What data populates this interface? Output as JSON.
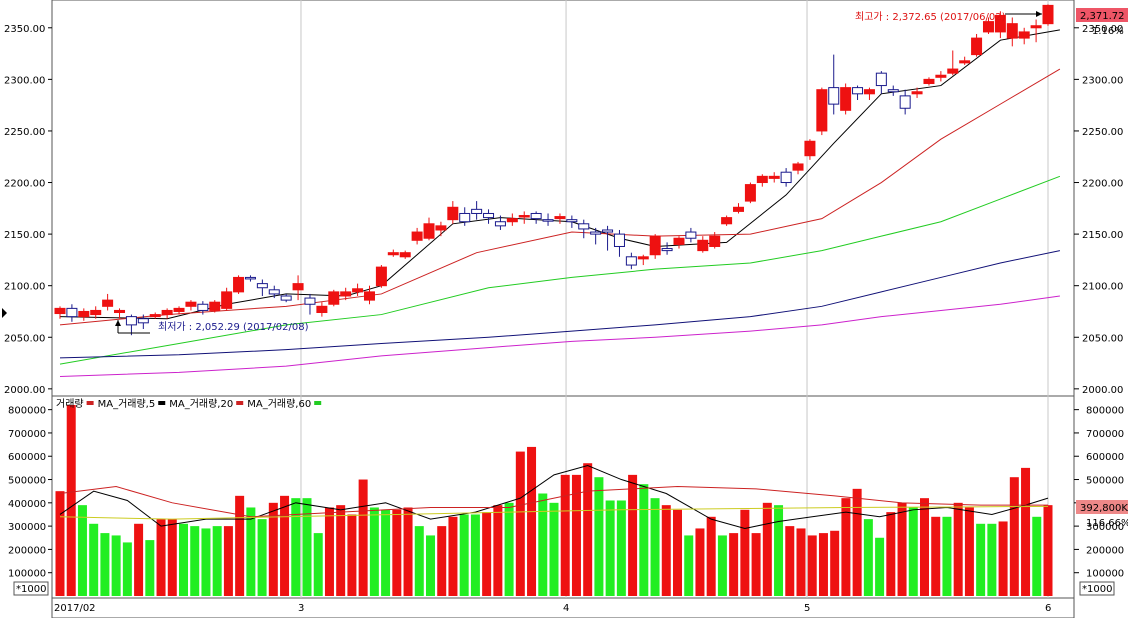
{
  "price_panel": {
    "high_label": "최고가 : 2,372.65 (2017/06/02)",
    "low_label": "최저가 : 2,052.29 (2017/02/08)",
    "current_price_badge": "2,371.72",
    "current_change": "1.16%"
  },
  "volume_panel": {
    "legend": [
      {
        "text": "거래량",
        "color": "#000000"
      },
      {
        "text": "MA_거래량,5",
        "color": "#000000"
      },
      {
        "text": "MA_거래량,20",
        "color": "#cc0000"
      },
      {
        "text": "MA_거래량,60",
        "color": "#22cc22"
      }
    ],
    "current_volume_badge": "392,800K",
    "current_ratio": "116.66%",
    "unit_label": "*1000"
  },
  "colors": {
    "up": "#ee1111",
    "down_candle_edge": "#1a1a8c",
    "down_volume": "#22ee22",
    "ma5": "#000000",
    "ma20": "#cc2222",
    "ma60": "#22cc22",
    "ma120": "#111177",
    "ma240": "#cc22cc",
    "badge_price": "#ee5566",
    "badge_volume": "#ee8888"
  },
  "chart_data": [
    {
      "type": "candlestick",
      "y_ticks": [
        "2350.00",
        "2300.00",
        "2250.00",
        "2200.00",
        "2150.00",
        "2100.00",
        "2050.00",
        "2000.00"
      ],
      "ylim": [
        1995,
        2375
      ],
      "x_tick_labels": [
        "2017/02",
        "3",
        "4",
        "5",
        "6"
      ],
      "x_tick_index": [
        0,
        10,
        21,
        31,
        41
      ],
      "ohlc": [
        [
          2073,
          2080,
          2068,
          2078
        ],
        [
          2078,
          2082,
          2065,
          2070
        ],
        [
          2070,
          2078,
          2066,
          2075
        ],
        [
          2072,
          2080,
          2068,
          2076
        ],
        [
          2080,
          2092,
          2076,
          2086
        ],
        [
          2074,
          2078,
          2068,
          2076
        ],
        [
          2070,
          2072,
          2052,
          2062
        ],
        [
          2068,
          2072,
          2058,
          2064
        ],
        [
          2070,
          2074,
          2068,
          2072
        ],
        [
          2072,
          2078,
          2068,
          2076
        ],
        [
          2075,
          2080,
          2072,
          2078
        ],
        [
          2080,
          2086,
          2076,
          2084
        ],
        [
          2082,
          2085,
          2072,
          2076
        ],
        [
          2076,
          2086,
          2074,
          2084
        ],
        [
          2078,
          2098,
          2076,
          2094
        ],
        [
          2094,
          2110,
          2092,
          2108
        ],
        [
          2108,
          2110,
          2104,
          2107
        ],
        [
          2102,
          2106,
          2090,
          2098
        ],
        [
          2096,
          2100,
          2088,
          2092
        ],
        [
          2090,
          2092,
          2084,
          2086
        ],
        [
          2096,
          2110,
          2086,
          2102
        ],
        [
          2088,
          2092,
          2072,
          2082
        ],
        [
          2074,
          2084,
          2070,
          2080
        ],
        [
          2082,
          2096,
          2080,
          2094
        ],
        [
          2090,
          2098,
          2086,
          2094
        ],
        [
          2094,
          2102,
          2090,
          2097
        ],
        [
          2086,
          2100,
          2082,
          2094
        ],
        [
          2100,
          2120,
          2098,
          2118
        ],
        [
          2130,
          2135,
          2128,
          2132
        ],
        [
          2128,
          2134,
          2126,
          2132
        ],
        [
          2144,
          2156,
          2140,
          2152
        ],
        [
          2146,
          2166,
          2144,
          2160
        ],
        [
          2154,
          2162,
          2148,
          2158
        ],
        [
          2164,
          2182,
          2160,
          2176
        ],
        [
          2170,
          2176,
          2158,
          2162
        ],
        [
          2174,
          2182,
          2164,
          2170
        ],
        [
          2170,
          2174,
          2160,
          2166
        ],
        [
          2162,
          2168,
          2154,
          2158
        ],
        [
          2162,
          2170,
          2158,
          2165
        ],
        [
          2168,
          2172,
          2160,
          2168
        ],
        [
          2170,
          2172,
          2160,
          2165
        ],
        [
          2164,
          2170,
          2158,
          2163
        ],
        [
          2165,
          2170,
          2160,
          2167
        ],
        [
          2164,
          2168,
          2156,
          2162
        ],
        [
          2160,
          2164,
          2146,
          2155
        ],
        [
          2152,
          2156,
          2140,
          2150
        ],
        [
          2154,
          2158,
          2134,
          2152
        ],
        [
          2150,
          2154,
          2128,
          2138
        ],
        [
          2128,
          2132,
          2116,
          2120
        ],
        [
          2126,
          2130,
          2120,
          2128
        ],
        [
          2130,
          2150,
          2126,
          2148
        ],
        [
          2136,
          2142,
          2130,
          2134
        ],
        [
          2140,
          2148,
          2136,
          2146
        ],
        [
          2152,
          2156,
          2142,
          2146
        ],
        [
          2134,
          2148,
          2132,
          2144
        ],
        [
          2138,
          2152,
          2136,
          2148
        ],
        [
          2160,
          2168,
          2158,
          2166
        ],
        [
          2172,
          2180,
          2170,
          2176
        ],
        [
          2182,
          2200,
          2180,
          2198
        ],
        [
          2200,
          2208,
          2196,
          2206
        ],
        [
          2204,
          2210,
          2200,
          2206
        ],
        [
          2210,
          2214,
          2196,
          2200
        ],
        [
          2212,
          2220,
          2208,
          2218
        ],
        [
          2226,
          2242,
          2222,
          2240
        ],
        [
          2250,
          2292,
          2246,
          2290
        ],
        [
          2292,
          2324,
          2266,
          2276
        ],
        [
          2270,
          2296,
          2266,
          2292
        ],
        [
          2292,
          2294,
          2280,
          2286
        ],
        [
          2286,
          2292,
          2280,
          2290
        ],
        [
          2306,
          2308,
          2286,
          2294
        ],
        [
          2290,
          2294,
          2284,
          2288
        ],
        [
          2284,
          2290,
          2266,
          2272
        ],
        [
          2286,
          2292,
          2282,
          2288
        ],
        [
          2296,
          2302,
          2294,
          2300
        ],
        [
          2302,
          2308,
          2298,
          2304
        ],
        [
          2306,
          2328,
          2304,
          2310
        ],
        [
          2316,
          2322,
          2314,
          2318
        ],
        [
          2324,
          2344,
          2322,
          2340
        ],
        [
          2346,
          2360,
          2344,
          2356
        ],
        [
          2346,
          2366,
          2340,
          2362
        ],
        [
          2340,
          2360,
          2332,
          2354
        ],
        [
          2340,
          2350,
          2334,
          2346
        ],
        [
          2350,
          2358,
          2336,
          2352
        ],
        [
          2354,
          2372.65,
          2352,
          2371.72
        ]
      ],
      "ma": {
        "ma5": [
          [
            0,
            2070
          ],
          [
            9,
            2068
          ],
          [
            14,
            2082
          ],
          [
            19,
            2092
          ],
          [
            24,
            2090
          ],
          [
            27,
            2100
          ],
          [
            33,
            2160
          ],
          [
            37,
            2166
          ],
          [
            43,
            2162
          ],
          [
            47,
            2146
          ],
          [
            50,
            2138
          ],
          [
            56,
            2142
          ],
          [
            61,
            2188
          ],
          [
            65,
            2238
          ],
          [
            69,
            2286
          ],
          [
            74,
            2294
          ],
          [
            79,
            2338
          ],
          [
            84,
            2348
          ]
        ],
        "ma20": [
          [
            0,
            2062
          ],
          [
            9,
            2072
          ],
          [
            19,
            2080
          ],
          [
            27,
            2092
          ],
          [
            35,
            2132
          ],
          [
            43,
            2152
          ],
          [
            50,
            2148
          ],
          [
            58,
            2150
          ],
          [
            64,
            2165
          ],
          [
            69,
            2200
          ],
          [
            74,
            2242
          ],
          [
            79,
            2276
          ],
          [
            84,
            2310
          ]
        ],
        "ma60": [
          [
            0,
            2024
          ],
          [
            10,
            2044
          ],
          [
            19,
            2062
          ],
          [
            27,
            2072
          ],
          [
            36,
            2098
          ],
          [
            43,
            2108
          ],
          [
            50,
            2116
          ],
          [
            58,
            2122
          ],
          [
            64,
            2134
          ],
          [
            69,
            2148
          ],
          [
            74,
            2162
          ],
          [
            79,
            2184
          ],
          [
            84,
            2206
          ]
        ],
        "ma120": [
          [
            0,
            2030
          ],
          [
            10,
            2033
          ],
          [
            19,
            2038
          ],
          [
            27,
            2044
          ],
          [
            36,
            2050
          ],
          [
            43,
            2056
          ],
          [
            50,
            2062
          ],
          [
            58,
            2070
          ],
          [
            64,
            2080
          ],
          [
            69,
            2094
          ],
          [
            74,
            2108
          ],
          [
            79,
            2122
          ],
          [
            84,
            2134
          ]
        ],
        "ma240": [
          [
            0,
            2012
          ],
          [
            10,
            2016
          ],
          [
            19,
            2022
          ],
          [
            27,
            2032
          ],
          [
            36,
            2040
          ],
          [
            43,
            2046
          ],
          [
            50,
            2050
          ],
          [
            58,
            2056
          ],
          [
            64,
            2062
          ],
          [
            69,
            2070
          ],
          [
            74,
            2076
          ],
          [
            79,
            2082
          ],
          [
            84,
            2090
          ]
        ]
      }
    },
    {
      "type": "bar",
      "unit": "*1000",
      "y_ticks": [
        "800000",
        "700000",
        "600000",
        "500000",
        "400000",
        "300000",
        "200000",
        "100000"
      ],
      "ylim": [
        0,
        850000
      ],
      "volume": [
        450,
        820,
        390,
        310,
        270,
        260,
        230,
        310,
        240,
        330,
        330,
        310,
        300,
        290,
        300,
        300,
        430,
        380,
        330,
        400,
        430,
        420,
        420,
        270,
        380,
        390,
        350,
        500,
        380,
        370,
        370,
        380,
        300,
        260,
        300,
        340,
        350,
        350,
        360,
        390,
        400,
        620,
        640,
        440,
        400,
        520,
        520,
        570,
        510,
        410,
        410,
        520,
        480,
        420,
        390,
        370,
        260,
        290,
        340,
        260,
        270,
        370,
        270,
        400,
        390,
        300,
        290,
        260,
        270,
        280,
        420,
        460,
        330,
        250,
        360,
        400,
        380,
        420,
        340,
        340,
        400,
        380,
        310,
        310,
        320,
        510,
        550,
        340,
        390
      ],
      "direction": [
        1,
        1,
        0,
        0,
        0,
        0,
        0,
        1,
        0,
        1,
        1,
        0,
        0,
        0,
        0,
        1,
        1,
        0,
        0,
        1,
        1,
        0,
        0,
        0,
        1,
        1,
        1,
        1,
        0,
        0,
        1,
        1,
        0,
        0,
        1,
        1,
        0,
        0,
        1,
        1,
        0,
        1,
        1,
        0,
        0,
        1,
        1,
        1,
        0,
        0,
        0,
        1,
        0,
        0,
        1,
        1,
        0,
        1,
        1,
        0,
        1,
        1,
        1,
        1,
        0,
        1,
        1,
        1,
        1,
        1,
        1,
        1,
        0,
        0,
        1,
        1,
        0,
        1,
        1,
        0,
        1,
        1,
        0,
        0,
        1,
        1,
        1,
        0,
        1
      ],
      "ma5": [
        [
          0,
          350
        ],
        [
          3,
          450
        ],
        [
          6,
          410
        ],
        [
          9,
          300
        ],
        [
          13,
          330
        ],
        [
          17,
          330
        ],
        [
          21,
          400
        ],
        [
          25,
          370
        ],
        [
          29,
          400
        ],
        [
          33,
          330
        ],
        [
          37,
          360
        ],
        [
          41,
          420
        ],
        [
          44,
          520
        ],
        [
          47,
          560
        ],
        [
          50,
          500
        ],
        [
          54,
          440
        ],
        [
          58,
          330
        ],
        [
          61,
          290
        ],
        [
          64,
          320
        ],
        [
          67,
          340
        ],
        [
          70,
          360
        ],
        [
          73,
          340
        ],
        [
          76,
          370
        ],
        [
          79,
          380
        ],
        [
          83,
          350
        ],
        [
          86,
          390
        ],
        [
          88,
          420
        ]
      ],
      "ma20": [
        [
          0,
          440
        ],
        [
          5,
          470
        ],
        [
          10,
          400
        ],
        [
          17,
          340
        ],
        [
          25,
          360
        ],
        [
          33,
          380
        ],
        [
          40,
          380
        ],
        [
          47,
          450
        ],
        [
          55,
          470
        ],
        [
          62,
          460
        ],
        [
          69,
          430
        ],
        [
          75,
          400
        ],
        [
          82,
          390
        ],
        [
          88,
          390
        ]
      ],
      "ma60": [
        [
          0,
          340
        ],
        [
          10,
          330
        ],
        [
          20,
          340
        ],
        [
          30,
          350
        ],
        [
          40,
          360
        ],
        [
          50,
          370
        ],
        [
          60,
          375
        ],
        [
          70,
          380
        ],
        [
          80,
          382
        ],
        [
          88,
          385
        ]
      ]
    }
  ]
}
